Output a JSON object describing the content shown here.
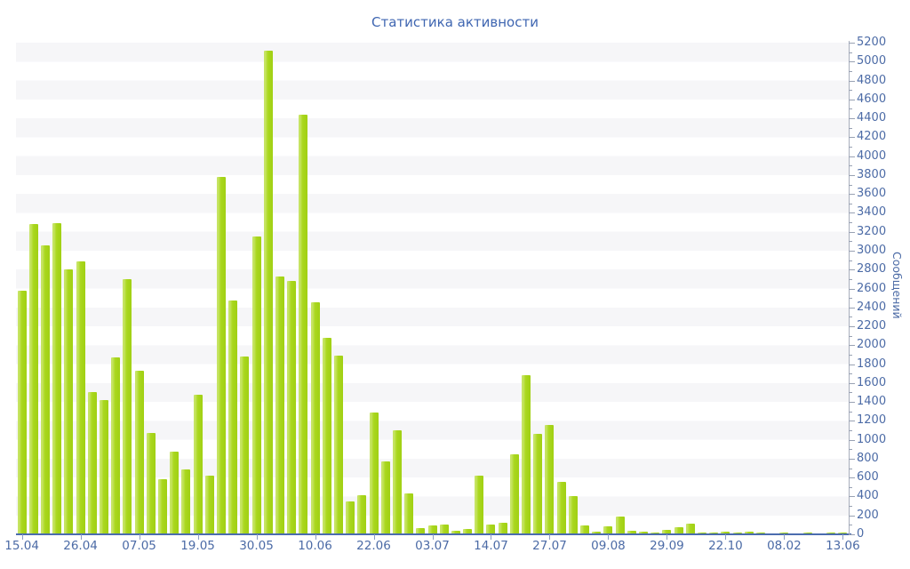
{
  "chart_data": {
    "type": "bar",
    "title": "Статистика активности",
    "xlabel": "",
    "ylabel": "Сообщений",
    "ylim": [
      0,
      5200
    ],
    "ytick_step": 200,
    "ytick_labels": [
      "0",
      "200",
      "400",
      "600",
      "800",
      "1000",
      "1200",
      "1400",
      "1600",
      "1800",
      "2000",
      "2200",
      "2400",
      "2600",
      "2800",
      "3000",
      "3200",
      "3400",
      "3600",
      "3800",
      "4000",
      "4200",
      "4400",
      "4600",
      "4800",
      "5000",
      "5200"
    ],
    "x_tick_every": 5,
    "x_tick_labels": [
      "15.04",
      "26.04",
      "07.05",
      "19.05",
      "30.05",
      "10.06",
      "22.06",
      "03.07",
      "14.07",
      "27.07",
      "09.08",
      "29.09",
      "22.10",
      "08.02",
      "13.06"
    ],
    "values": [
      2580,
      3280,
      3060,
      3290,
      2800,
      2890,
      1500,
      1420,
      1870,
      2700,
      1730,
      1070,
      580,
      875,
      690,
      1480,
      620,
      3780,
      2470,
      1880,
      3150,
      5120,
      2730,
      2680,
      4440,
      2450,
      2080,
      1890,
      350,
      410,
      1290,
      770,
      1100,
      435,
      70,
      95,
      105,
      40,
      60,
      620,
      100,
      120,
      850,
      1680,
      1060,
      1160,
      555,
      400,
      95,
      30,
      85,
      190,
      35,
      30,
      15,
      50,
      75,
      110,
      20,
      18,
      28,
      15,
      28,
      21,
      12,
      21,
      12,
      18,
      12,
      15,
      20
    ],
    "grid": "horizontal-bands-200",
    "legend": "none",
    "y_axis_side": "right"
  },
  "colors": {
    "title": "#3f66b1",
    "tick_label": "#4c6ba6",
    "bar": "#aad71e",
    "bar_edge_light": "#c6e463",
    "x_axis_line": "#4b6cae",
    "y_axis_line": "#a8aebc",
    "band": "#f6f6f8",
    "background": "#ffffff"
  }
}
